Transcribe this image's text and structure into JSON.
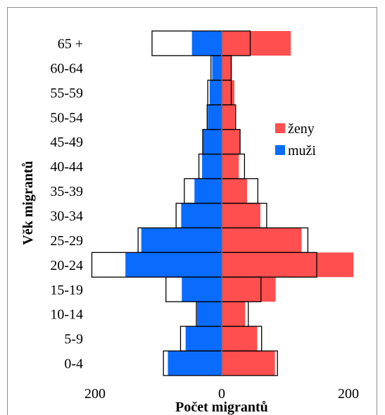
{
  "chart_data": {
    "type": "bar",
    "subtype": "population-pyramid",
    "title": "",
    "xlabel": "Počet migrantů",
    "ylabel": "Věk migrantů",
    "xlim": [
      -200,
      200
    ],
    "xtick_labels": [
      "200",
      "0",
      "200"
    ],
    "grid": false,
    "legend_position": "right",
    "categories": [
      "0-4",
      "5-9",
      "10-14",
      "15-19",
      "20-24",
      "25-29",
      "30-34",
      "35-39",
      "40-44",
      "45-49",
      "50-54",
      "55-59",
      "60-64",
      "65 +"
    ],
    "series": [
      {
        "name": "ženy",
        "color": "#ff4f4f",
        "side": "right",
        "values": [
          84,
          56,
          37,
          85,
          208,
          126,
          61,
          40,
          27,
          29,
          21,
          20,
          16,
          109
        ]
      },
      {
        "name": "muži",
        "color": "#0a6bff",
        "side": "left",
        "values": [
          85,
          57,
          39,
          63,
          152,
          127,
          64,
          43,
          31,
          30,
          22,
          19,
          15,
          47
        ]
      }
    ],
    "outline_series": {
      "right": [
        88,
        63,
        42,
        62,
        150,
        136,
        71,
        57,
        36,
        29,
        22,
        15,
        15,
        45
      ],
      "left": [
        92,
        65,
        40,
        88,
        205,
        132,
        72,
        59,
        36,
        30,
        23,
        22,
        17,
        110
      ]
    }
  }
}
